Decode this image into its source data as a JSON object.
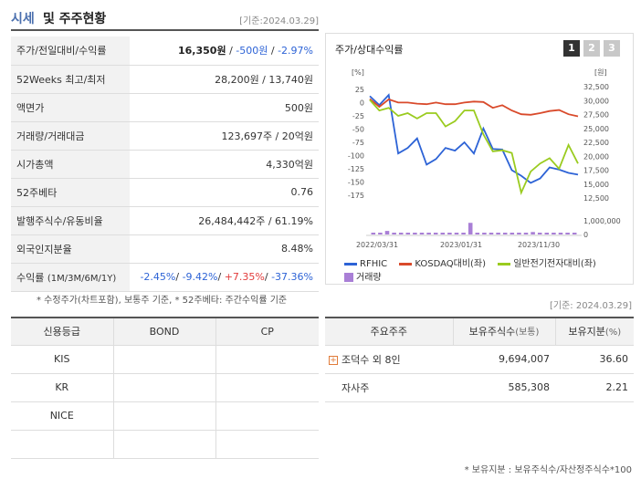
{
  "header": {
    "title_main": "시세",
    "title_sub": "및 주주현황",
    "date": "[기준:2024.03.29]"
  },
  "quote": {
    "price_row": {
      "label": "주가/전일대비/수익률",
      "price": "16,350원",
      "sep1": " / ",
      "change": "-500원",
      "sep2": " / ",
      "rate": "-2.97%"
    },
    "weeks52": {
      "label": "52Weeks 최고/최저",
      "value": "28,200원 / 13,740원"
    },
    "par": {
      "label": "액면가",
      "value": "500원"
    },
    "volume": {
      "label": "거래량/거래대금",
      "value": "123,697주 / 20억원"
    },
    "mktcap": {
      "label": "시가총액",
      "value": "4,330억원"
    },
    "beta": {
      "label": "52주베타",
      "value": "0.76"
    },
    "shares": {
      "label": "발행주식수/유동비율",
      "value": "26,484,442주 / 61.19%"
    },
    "foreign": {
      "label": "외국인지분율",
      "value": "8.48%"
    },
    "returns": {
      "label": "수익률",
      "label_sub": "(1M/3M/6M/1Y)",
      "r1": "-2.45%",
      "s1": "/ ",
      "r2": "-9.42%",
      "s2": "/ ",
      "r3": "+7.35%",
      "s3": "/ ",
      "r4": "-37.36%"
    }
  },
  "note1": "* 수정주가(차트포함), 보통주 기준, * 52주베타: 주간수익률 기준",
  "chart": {
    "title": "주가/상대수익률",
    "buttons": [
      "1",
      "2",
      "3"
    ],
    "active_button": 0,
    "left_unit": "[%]",
    "right_unit": "[원]",
    "legend": {
      "s1": "RFHIC",
      "s2": "KOSDAQ대비(좌)",
      "s3": "일반전기전자대비(좌)",
      "bar": "거래량"
    },
    "colors": {
      "rfhic": "#2d63d6",
      "kosdaq": "#d94a2b",
      "sector": "#9acb1f",
      "bar": "#a97fd6"
    }
  },
  "chart_data": {
    "type": "line",
    "x_ticks": [
      "2022/03/31",
      "2023/01/31",
      "2023/11/30"
    ],
    "left_ticks": [
      "25",
      "0",
      "-25",
      "-50",
      "-75",
      "-100",
      "-125",
      "-150",
      "-175"
    ],
    "right_ticks": [
      "32,500",
      "30,000",
      "27,500",
      "25,000",
      "22,500",
      "20,000",
      "17,500",
      "15,000",
      "12,500"
    ],
    "volume_ticks": [
      "1,000,000",
      "0"
    ],
    "ylim_left": [
      -180,
      30
    ],
    "ylim_right": [
      12500,
      32500
    ],
    "series": [
      {
        "name": "RFHIC",
        "axis": "right",
        "values": [
          30800,
          29200,
          31000,
          20500,
          21500,
          23200,
          18500,
          19500,
          21500,
          21000,
          22500,
          20500,
          25000,
          21300,
          21200,
          17500,
          16500,
          15200,
          16000,
          18000,
          17600,
          17000,
          16700
        ]
      },
      {
        "name": "KOSDAQ대비(좌)",
        "axis": "left",
        "values": [
          7,
          -8,
          6,
          0,
          0,
          -2,
          -3,
          0,
          -3,
          -3,
          0,
          2,
          1,
          -10,
          -5,
          -15,
          -22,
          -23,
          -20,
          -16,
          -14,
          -22,
          -26
        ]
      },
      {
        "name": "일반전기전자대비(좌)",
        "axis": "left",
        "values": [
          5,
          -15,
          -10,
          -25,
          -20,
          -30,
          -20,
          -20,
          -45,
          -35,
          -15,
          -15,
          -60,
          -92,
          -90,
          -95,
          -170,
          -130,
          -115,
          -105,
          -125,
          -80,
          -115
        ]
      }
    ],
    "volume": [
      130000,
      40000,
      260000,
      40000,
      60000,
      40000,
      60000,
      40000,
      60000,
      50000,
      40000,
      40000,
      60000,
      40000,
      850000,
      70000,
      40000,
      50000,
      40000,
      60000,
      40000,
      40000,
      50000,
      180000,
      50000,
      40000,
      30000,
      60000,
      40000,
      50000
    ]
  },
  "date2": "[기준: 2024.03.29]",
  "credit": {
    "headers": [
      "신용등급",
      "BOND",
      "CP"
    ],
    "rows": [
      [
        "KIS",
        "",
        ""
      ],
      [
        "KR",
        "",
        ""
      ],
      [
        "NICE",
        "",
        ""
      ],
      [
        "",
        "",
        ""
      ]
    ]
  },
  "share": {
    "headers": {
      "h1": "주요주주",
      "h2": "보유주식수",
      "h2u": "(보통)",
      "h3": "보유지분",
      "h3u": "(%)"
    },
    "rows": [
      {
        "name": "조덕수 외 8인",
        "shares": "9,694,007",
        "pct": "36.60",
        "expand": "+"
      },
      {
        "name": "자사주",
        "shares": "585,308",
        "pct": "2.21"
      }
    ]
  },
  "note2": "* 보유지분 : 보유주식수/자산정주식수*100"
}
